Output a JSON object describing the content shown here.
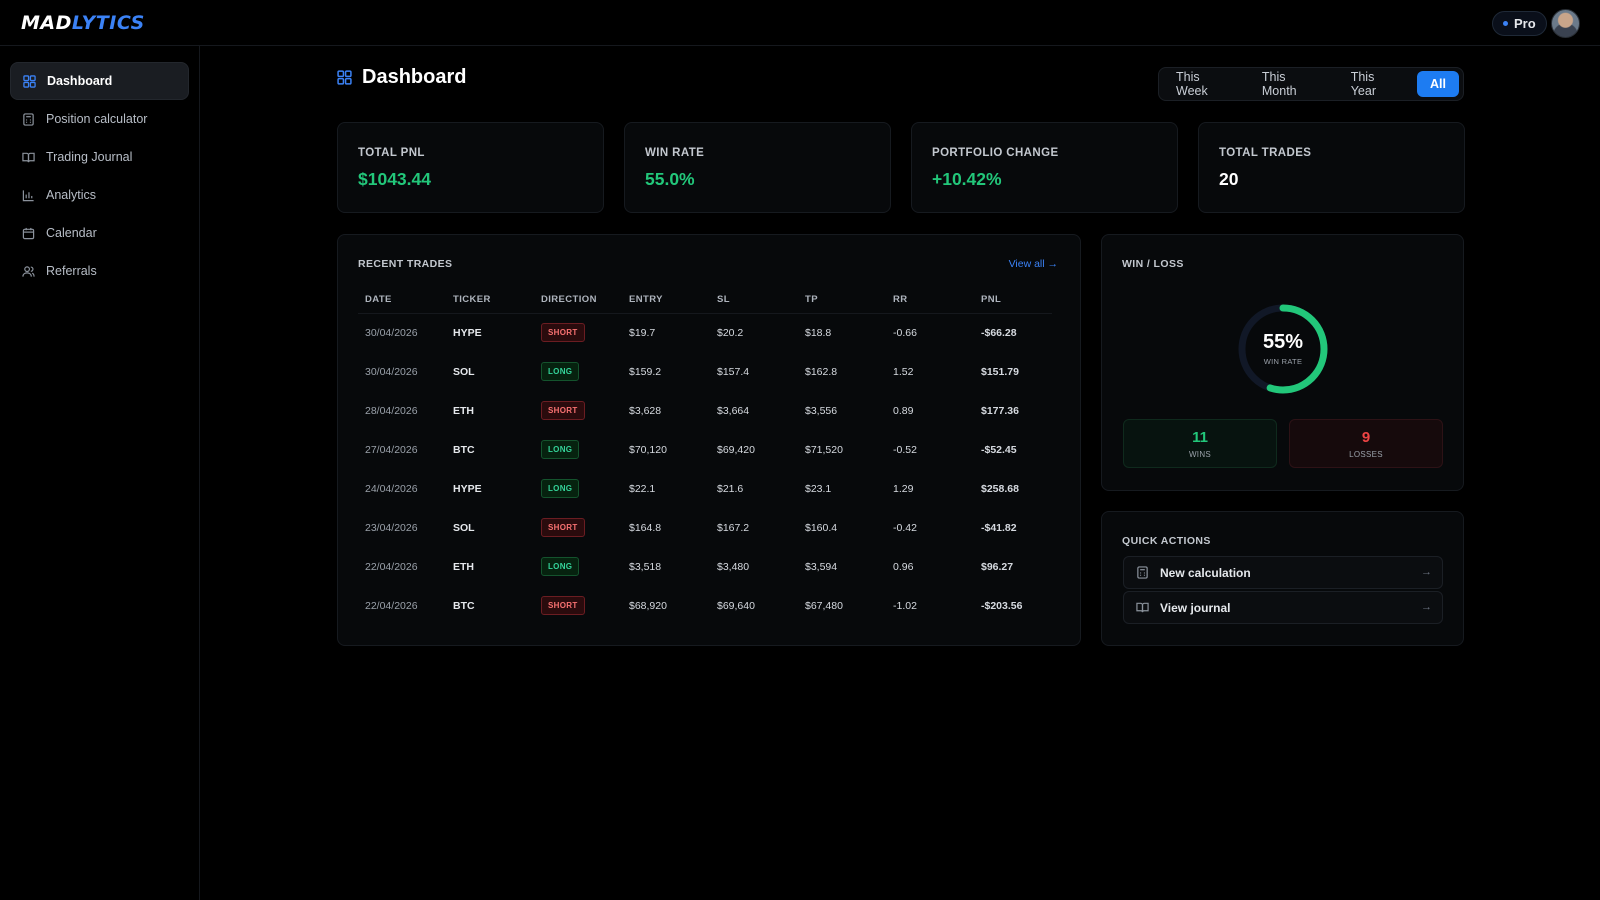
{
  "app": {
    "logo_part1": "MAD",
    "logo_part2": "LYTICS",
    "plan_badge": "Pro"
  },
  "sidebar": {
    "items": [
      {
        "label": "Dashboard",
        "icon": "grid-icon",
        "active": true
      },
      {
        "label": "Position calculator",
        "icon": "calculator-icon",
        "active": false
      },
      {
        "label": "Trading Journal",
        "icon": "book-icon",
        "active": false
      },
      {
        "label": "Analytics",
        "icon": "bar-chart-icon",
        "active": false
      },
      {
        "label": "Calendar",
        "icon": "calendar-icon",
        "active": false
      },
      {
        "label": "Referrals",
        "icon": "users-icon",
        "active": false
      }
    ]
  },
  "header": {
    "title": "Dashboard",
    "range_tabs": [
      "This Week",
      "This Month",
      "This Year",
      "All"
    ],
    "active_range": "All"
  },
  "stats": [
    {
      "label": "TOTAL PNL",
      "value": "$1043.44",
      "tone": "green"
    },
    {
      "label": "WIN RATE",
      "value": "55.0%",
      "tone": "green"
    },
    {
      "label": "PORTFOLIO CHANGE",
      "value": "+10.42%",
      "tone": "green"
    },
    {
      "label": "TOTAL TRADES",
      "value": "20",
      "tone": "white"
    }
  ],
  "recent_trades": {
    "title": "RECENT TRADES",
    "view_all": "View all →",
    "columns": [
      "DATE",
      "TICKER",
      "DIRECTION",
      "ENTRY",
      "SL",
      "TP",
      "RR",
      "PNL"
    ],
    "rows": [
      {
        "date": "30/04/2026",
        "ticker": "HYPE",
        "direction": "SHORT",
        "entry": "$19.7",
        "sl": "$20.2",
        "tp": "$18.8",
        "rr": "-0.66",
        "pnl": "-$66.28"
      },
      {
        "date": "30/04/2026",
        "ticker": "SOL",
        "direction": "LONG",
        "entry": "$159.2",
        "sl": "$157.4",
        "tp": "$162.8",
        "rr": "1.52",
        "pnl": "$151.79"
      },
      {
        "date": "28/04/2026",
        "ticker": "ETH",
        "direction": "SHORT",
        "entry": "$3,628",
        "sl": "$3,664",
        "tp": "$3,556",
        "rr": "0.89",
        "pnl": "$177.36"
      },
      {
        "date": "27/04/2026",
        "ticker": "BTC",
        "direction": "LONG",
        "entry": "$70,120",
        "sl": "$69,420",
        "tp": "$71,520",
        "rr": "-0.52",
        "pnl": "-$52.45"
      },
      {
        "date": "24/04/2026",
        "ticker": "HYPE",
        "direction": "LONG",
        "entry": "$22.1",
        "sl": "$21.6",
        "tp": "$23.1",
        "rr": "1.29",
        "pnl": "$258.68"
      },
      {
        "date": "23/04/2026",
        "ticker": "SOL",
        "direction": "SHORT",
        "entry": "$164.8",
        "sl": "$167.2",
        "tp": "$160.4",
        "rr": "-0.42",
        "pnl": "-$41.82"
      },
      {
        "date": "22/04/2026",
        "ticker": "ETH",
        "direction": "LONG",
        "entry": "$3,518",
        "sl": "$3,480",
        "tp": "$3,594",
        "rr": "0.96",
        "pnl": "$96.27"
      },
      {
        "date": "22/04/2026",
        "ticker": "BTC",
        "direction": "SHORT",
        "entry": "$68,920",
        "sl": "$69,640",
        "tp": "$67,480",
        "rr": "-1.02",
        "pnl": "-$203.56"
      }
    ]
  },
  "win_loss": {
    "title": "WIN / LOSS",
    "win_rate_text": "55%",
    "win_rate_fraction": 0.55,
    "win_rate_label": "WIN RATE",
    "wins": "11",
    "wins_label": "WINS",
    "losses": "9",
    "losses_label": "LOSSES"
  },
  "quick_actions": {
    "title": "QUICK ACTIONS",
    "items": [
      {
        "label": "New calculation",
        "icon": "calculator-icon"
      },
      {
        "label": "View journal",
        "icon": "book-icon"
      }
    ]
  },
  "colors": {
    "accent": "#1d7cf2",
    "positive": "#22c77a",
    "negative": "#ef4444",
    "background": "#000000",
    "card": "#07090b"
  }
}
